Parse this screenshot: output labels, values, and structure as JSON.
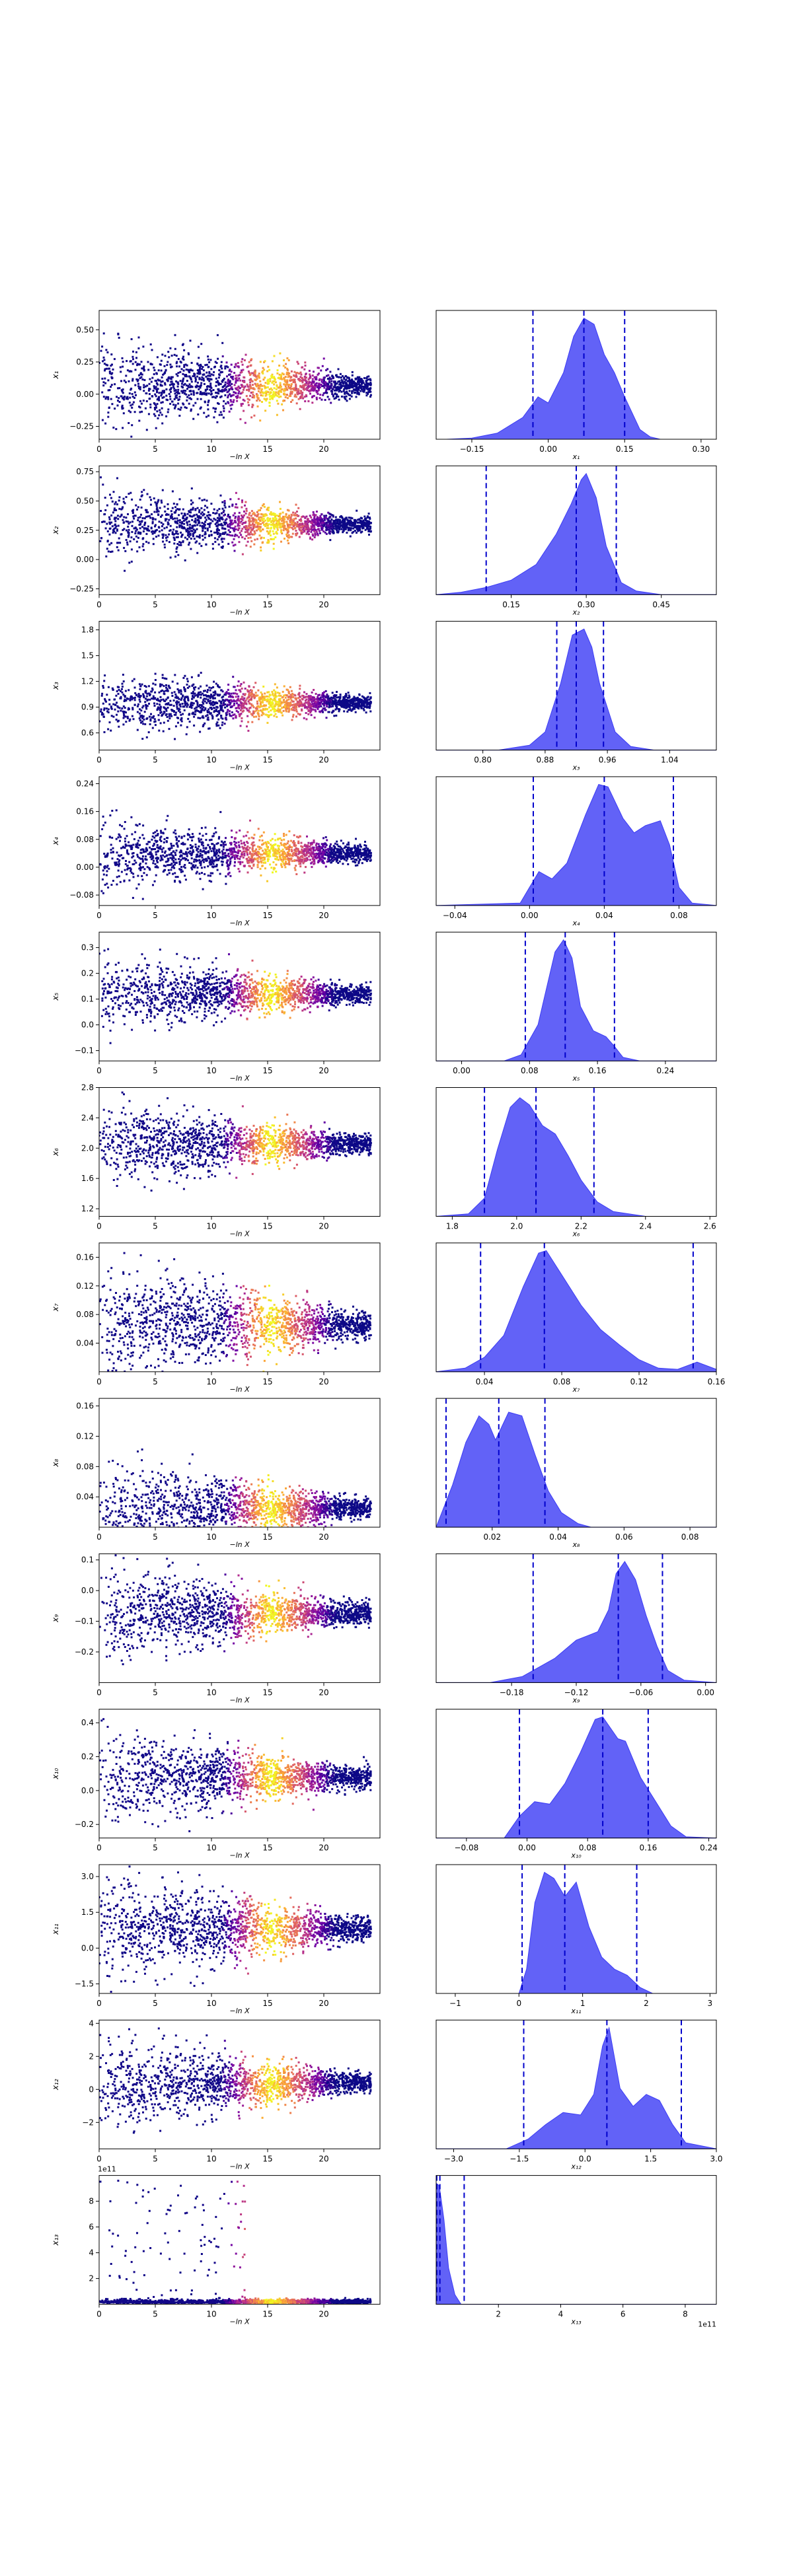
{
  "chart_data": {
    "type": "trace-and-posterior-grid",
    "trace_xlabel": "−ln X",
    "trace_xlim": [
      0,
      25
    ],
    "trace_xticks": [
      0,
      5,
      10,
      15,
      20
    ],
    "colormap": [
      "#0d0887",
      "#6a00a8",
      "#b12a90",
      "#e16462",
      "#fca636",
      "#f0f921"
    ],
    "kde_color": "#3b3bf5",
    "quantile_line_color": "#0000cc",
    "rows": [
      {
        "ylabel": "x₁",
        "ylim": [
          -0.35,
          0.65
        ],
        "yticks": [
          -0.25,
          0.0,
          0.25,
          0.5
        ],
        "yticklabels": [
          "−0.25",
          "0.00",
          "0.25",
          "0.50"
        ],
        "center": 0.07,
        "spread": 0.14,
        "kde_xlabel": "x₁",
        "kde_xlim": [
          -0.22,
          0.33
        ],
        "kde_xticks": [
          -0.15,
          0.0,
          0.15,
          0.3
        ],
        "kde_xticklabels": [
          "−0.15",
          "0.00",
          "0.15",
          "0.30"
        ],
        "quantiles": [
          -0.03,
          0.07,
          0.15
        ],
        "kde_x": [
          -0.2,
          -0.15,
          -0.1,
          -0.05,
          -0.02,
          0.0,
          0.03,
          0.05,
          0.07,
          0.09,
          0.11,
          0.13,
          0.15,
          0.18,
          0.2,
          0.22,
          0.3
        ],
        "kde_y": [
          0,
          0.01,
          0.05,
          0.18,
          0.35,
          0.3,
          0.55,
          0.85,
          1.0,
          0.95,
          0.7,
          0.55,
          0.35,
          0.08,
          0.02,
          0,
          0
        ]
      },
      {
        "ylabel": "x₂",
        "ylim": [
          -0.3,
          0.8
        ],
        "yticks": [
          -0.25,
          0.0,
          0.25,
          0.5,
          0.75
        ],
        "yticklabels": [
          "−0.25",
          "0.00",
          "0.25",
          "0.50",
          "0.75"
        ],
        "center": 0.3,
        "spread": 0.12,
        "kde_xlabel": "x₂",
        "kde_xlim": [
          0.0,
          0.56
        ],
        "kde_xticks": [
          0.15,
          0.3,
          0.45
        ],
        "kde_xticklabels": [
          "0.15",
          "0.30",
          "0.45"
        ],
        "quantiles": [
          0.1,
          0.28,
          0.36
        ],
        "kde_x": [
          0.0,
          0.05,
          0.1,
          0.15,
          0.2,
          0.24,
          0.27,
          0.29,
          0.3,
          0.32,
          0.34,
          0.37,
          0.4,
          0.45,
          0.56
        ],
        "kde_y": [
          0,
          0.02,
          0.06,
          0.12,
          0.25,
          0.5,
          0.75,
          0.95,
          1.0,
          0.8,
          0.4,
          0.1,
          0.03,
          0,
          0
        ]
      },
      {
        "ylabel": "x₃",
        "ylim": [
          0.4,
          1.9
        ],
        "yticks": [
          0.6,
          0.9,
          1.2,
          1.5,
          1.8
        ],
        "yticklabels": [
          "0.6",
          "0.9",
          "1.2",
          "1.5",
          "1.8"
        ],
        "center": 0.95,
        "spread": 0.15,
        "kde_xlabel": "x₃",
        "kde_xlim": [
          0.74,
          1.1
        ],
        "kde_xticks": [
          0.8,
          0.88,
          0.96,
          1.04
        ],
        "kde_xticklabels": [
          "0.80",
          "0.88",
          "0.96",
          "1.04"
        ],
        "quantiles": [
          0.895,
          0.92,
          0.955
        ],
        "kde_x": [
          0.74,
          0.82,
          0.86,
          0.88,
          0.9,
          0.915,
          0.93,
          0.94,
          0.95,
          0.97,
          0.99,
          1.02,
          1.1
        ],
        "kde_y": [
          0,
          0,
          0.04,
          0.15,
          0.55,
          0.95,
          1.0,
          0.85,
          0.55,
          0.15,
          0.03,
          0,
          0
        ]
      },
      {
        "ylabel": "x₄",
        "ylim": [
          -0.11,
          0.26
        ],
        "yticks": [
          -0.08,
          0.0,
          0.08,
          0.16,
          0.24
        ],
        "yticklabels": [
          "−0.08",
          "0.00",
          "0.08",
          "0.16",
          "0.24"
        ],
        "center": 0.04,
        "spread": 0.04,
        "kde_xlabel": "x₄",
        "kde_xlim": [
          -0.05,
          0.1
        ],
        "kde_xticks": [
          -0.04,
          0.0,
          0.04,
          0.08
        ],
        "kde_xticklabels": [
          "−0.04",
          "0.00",
          "0.04",
          "0.08"
        ],
        "quantiles": [
          0.002,
          0.04,
          0.077
        ],
        "kde_x": [
          -0.05,
          -0.005,
          0.0,
          0.005,
          0.012,
          0.02,
          0.03,
          0.037,
          0.042,
          0.05,
          0.056,
          0.062,
          0.07,
          0.075,
          0.08,
          0.087,
          0.1
        ],
        "kde_y": [
          0,
          0.02,
          0.15,
          0.28,
          0.22,
          0.35,
          0.75,
          1.0,
          0.98,
          0.72,
          0.6,
          0.66,
          0.7,
          0.5,
          0.15,
          0.02,
          0
        ]
      },
      {
        "ylabel": "x₅",
        "ylim": [
          -0.14,
          0.36
        ],
        "yticks": [
          -0.1,
          0.0,
          0.1,
          0.2,
          0.3
        ],
        "yticklabels": [
          "−0.1",
          "0.0",
          "0.1",
          "0.2",
          "0.3"
        ],
        "center": 0.12,
        "spread": 0.06,
        "kde_xlabel": "x₅",
        "kde_xlim": [
          -0.03,
          0.3
        ],
        "kde_xticks": [
          0.0,
          0.08,
          0.16,
          0.24
        ],
        "kde_xticklabels": [
          "0.00",
          "0.08",
          "0.16",
          "0.24"
        ],
        "quantiles": [
          0.075,
          0.122,
          0.18
        ],
        "kde_x": [
          -0.03,
          0.05,
          0.07,
          0.09,
          0.1,
          0.11,
          0.12,
          0.13,
          0.14,
          0.155,
          0.17,
          0.18,
          0.19,
          0.21,
          0.3
        ],
        "kde_y": [
          0,
          0,
          0.05,
          0.3,
          0.6,
          0.9,
          1.0,
          0.85,
          0.45,
          0.25,
          0.2,
          0.12,
          0.03,
          0,
          0
        ]
      },
      {
        "ylabel": "x₆",
        "ylim": [
          1.1,
          2.8
        ],
        "yticks": [
          1.2,
          1.6,
          2.0,
          2.4,
          2.8
        ],
        "yticklabels": [
          "1.2",
          "1.6",
          "2.0",
          "2.4",
          "2.8"
        ],
        "center": 2.05,
        "spread": 0.22,
        "kde_xlabel": "x₆",
        "kde_xlim": [
          1.75,
          2.62
        ],
        "kde_xticks": [
          1.8,
          2.0,
          2.2,
          2.4,
          2.6
        ],
        "kde_xticklabels": [
          "1.8",
          "2.0",
          "2.2",
          "2.4",
          "2.6"
        ],
        "quantiles": [
          1.9,
          2.06,
          2.24
        ],
        "kde_x": [
          1.75,
          1.85,
          1.9,
          1.94,
          1.98,
          2.01,
          2.04,
          2.08,
          2.12,
          2.16,
          2.2,
          2.25,
          2.3,
          2.4,
          2.62
        ],
        "kde_y": [
          0,
          0.02,
          0.15,
          0.55,
          0.9,
          0.98,
          0.92,
          0.75,
          0.68,
          0.5,
          0.3,
          0.12,
          0.04,
          0,
          0
        ]
      },
      {
        "ylabel": "x₇",
        "ylim": [
          0.0,
          0.18
        ],
        "yticks": [
          0.04,
          0.08,
          0.12,
          0.16
        ],
        "yticklabels": [
          "0.04",
          "0.08",
          "0.12",
          "0.16"
        ],
        "center": 0.065,
        "spread": 0.035,
        "kde_xlabel": "x₇",
        "kde_xlim": [
          0.015,
          0.16
        ],
        "kde_xticks": [
          0.04,
          0.08,
          0.12,
          0.16
        ],
        "kde_xticklabels": [
          "0.04",
          "0.08",
          "0.12",
          "0.16"
        ],
        "quantiles": [
          0.038,
          0.071,
          0.148
        ],
        "kde_x": [
          0.015,
          0.03,
          0.04,
          0.05,
          0.06,
          0.068,
          0.072,
          0.08,
          0.09,
          0.1,
          0.11,
          0.12,
          0.13,
          0.14,
          0.15,
          0.16
        ],
        "kde_y": [
          0,
          0.03,
          0.12,
          0.3,
          0.7,
          0.98,
          1.0,
          0.8,
          0.55,
          0.35,
          0.22,
          0.1,
          0.03,
          0.02,
          0.08,
          0.02
        ]
      },
      {
        "ylabel": "x₈",
        "ylim": [
          0.0,
          0.17
        ],
        "yticks": [
          0.04,
          0.08,
          0.12,
          0.16
        ],
        "yticklabels": [
          "0.04",
          "0.08",
          "0.12",
          "0.16"
        ],
        "center": 0.025,
        "spread": 0.025,
        "kde_xlabel": "x₈",
        "kde_xlim": [
          0.003,
          0.088
        ],
        "kde_xticks": [
          0.02,
          0.04,
          0.06,
          0.08
        ],
        "kde_xticklabels": [
          "0.02",
          "0.04",
          "0.06",
          "0.08"
        ],
        "quantiles": [
          0.006,
          0.022,
          0.036
        ],
        "kde_x": [
          0.003,
          0.008,
          0.012,
          0.016,
          0.019,
          0.021,
          0.025,
          0.029,
          0.033,
          0.037,
          0.041,
          0.046,
          0.05,
          0.088
        ],
        "kde_y": [
          0,
          0.35,
          0.7,
          0.92,
          0.85,
          0.72,
          0.95,
          0.92,
          0.6,
          0.3,
          0.12,
          0.03,
          0,
          0
        ]
      },
      {
        "ylabel": "x₉",
        "ylim": [
          -0.3,
          0.12
        ],
        "yticks": [
          -0.2,
          -0.1,
          0.0,
          0.1
        ],
        "yticklabels": [
          "−0.2",
          "−0.1",
          "0.0",
          "0.1"
        ],
        "center": -0.075,
        "spread": 0.06,
        "kde_xlabel": "x₉",
        "kde_xlim": [
          -0.25,
          0.01
        ],
        "kde_xticks": [
          -0.18,
          -0.12,
          -0.06,
          0.0
        ],
        "kde_xticklabels": [
          "−0.18",
          "−0.12",
          "−0.06",
          "0.00"
        ],
        "quantiles": [
          -0.16,
          -0.081,
          -0.04
        ],
        "kde_x": [
          -0.25,
          -0.2,
          -0.17,
          -0.14,
          -0.12,
          -0.1,
          -0.09,
          -0.083,
          -0.075,
          -0.065,
          -0.055,
          -0.045,
          -0.035,
          -0.02,
          0.01
        ],
        "kde_y": [
          0,
          0,
          0.05,
          0.2,
          0.35,
          0.42,
          0.6,
          0.9,
          1.0,
          0.85,
          0.55,
          0.3,
          0.1,
          0.02,
          0
        ]
      },
      {
        "ylabel": "x₁₀",
        "ylim": [
          -0.28,
          0.48
        ],
        "yticks": [
          -0.2,
          0.0,
          0.2,
          0.4
        ],
        "yticklabels": [
          "−0.2",
          "0.0",
          "0.2",
          "0.4"
        ],
        "center": 0.08,
        "spread": 0.11,
        "kde_xlabel": "x₁₀",
        "kde_xlim": [
          -0.12,
          0.25
        ],
        "kde_xticks": [
          -0.08,
          0.0,
          0.08,
          0.16,
          0.24
        ],
        "kde_xticklabels": [
          "−0.08",
          "0.00",
          "0.08",
          "0.16",
          "0.24"
        ],
        "quantiles": [
          -0.01,
          0.1,
          0.16
        ],
        "kde_x": [
          -0.12,
          -0.03,
          -0.01,
          0.01,
          0.03,
          0.05,
          0.07,
          0.09,
          0.1,
          0.12,
          0.13,
          0.15,
          0.17,
          0.19,
          0.21,
          0.25
        ],
        "kde_y": [
          0,
          0,
          0.18,
          0.3,
          0.28,
          0.45,
          0.7,
          0.98,
          1.0,
          0.82,
          0.8,
          0.5,
          0.3,
          0.1,
          0.01,
          0
        ]
      },
      {
        "ylabel": "x₁₁",
        "ylim": [
          -1.9,
          3.5
        ],
        "yticks": [
          -1.5,
          0.0,
          1.5,
          3.0
        ],
        "yticklabels": [
          "−1.5",
          "0.0",
          "1.5",
          "3.0"
        ],
        "center": 0.8,
        "spread": 0.9,
        "kde_xlabel": "x₁₁",
        "kde_xlim": [
          -1.3,
          3.1
        ],
        "kde_xticks": [
          -1,
          0,
          1,
          2,
          3
        ],
        "kde_xticklabels": [
          "−1",
          "0",
          "1",
          "2",
          "3"
        ],
        "quantiles": [
          0.05,
          0.72,
          1.85
        ],
        "kde_x": [
          -1.3,
          0.0,
          0.12,
          0.25,
          0.4,
          0.55,
          0.72,
          0.9,
          1.1,
          1.3,
          1.5,
          1.7,
          1.9,
          2.1,
          3.1
        ],
        "kde_y": [
          0,
          0,
          0.2,
          0.75,
          1.0,
          0.95,
          0.8,
          0.92,
          0.55,
          0.3,
          0.2,
          0.15,
          0.05,
          0,
          0
        ]
      },
      {
        "ylabel": "x₁₂",
        "ylim": [
          -3.6,
          4.2
        ],
        "yticks": [
          -2,
          0,
          2,
          4
        ],
        "yticklabels": [
          "−2",
          "0",
          "2",
          "4"
        ],
        "center": 0.4,
        "spread": 1.1,
        "kde_xlabel": "x₁₂",
        "kde_xlim": [
          -3.4,
          3.0
        ],
        "kde_xticks": [
          -3.0,
          -1.5,
          0.0,
          1.5,
          3.0
        ],
        "kde_xticklabels": [
          "−3.0",
          "−1.5",
          "0.0",
          "1.5",
          "3.0"
        ],
        "quantiles": [
          -1.4,
          0.5,
          2.2
        ],
        "kde_x": [
          -3.4,
          -1.8,
          -1.3,
          -0.9,
          -0.5,
          -0.1,
          0.2,
          0.4,
          0.55,
          0.8,
          1.1,
          1.4,
          1.7,
          2.0,
          2.3,
          3.0
        ],
        "kde_y": [
          0,
          0,
          0.08,
          0.2,
          0.3,
          0.28,
          0.45,
          0.85,
          1.0,
          0.5,
          0.35,
          0.45,
          0.4,
          0.2,
          0.05,
          0
        ]
      },
      {
        "ylabel": "x₁₃",
        "ylim": [
          0,
          1.0
        ],
        "yticks": [
          0.2,
          0.4,
          0.6,
          0.8
        ],
        "yticklabels": [
          "2",
          "4",
          "6",
          "8"
        ],
        "yoffset": "1e11",
        "center": 0.0,
        "spread": 0.0,
        "heavy_tail": true,
        "kde_xlabel": "x₁₃",
        "kde_xlim": [
          0,
          9.0
        ],
        "kde_xticks": [
          2,
          4,
          6,
          8
        ],
        "kde_xticklabels": [
          "2",
          "4",
          "6",
          "8"
        ],
        "kde_xoffset": "1e11",
        "quantiles": [
          0.02,
          0.12,
          0.9
        ],
        "kde_x": [
          0.0,
          0.1,
          0.25,
          0.4,
          0.6,
          0.8,
          9.0
        ],
        "kde_y": [
          1.0,
          0.98,
          0.7,
          0.3,
          0.08,
          0,
          0
        ]
      }
    ]
  }
}
